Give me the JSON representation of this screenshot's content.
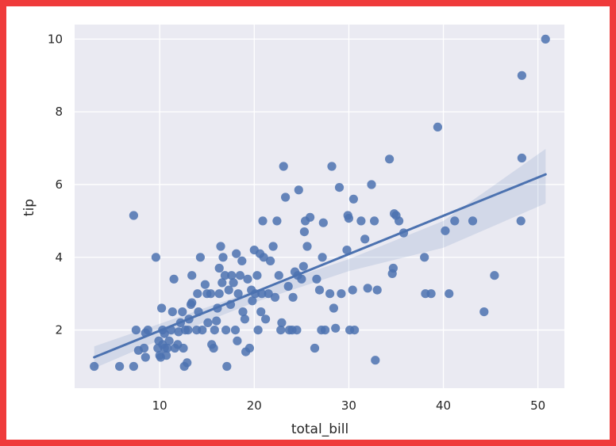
{
  "chart_data": {
    "type": "scatter",
    "title": "",
    "xlabel": "total_bill",
    "ylabel": "tip",
    "xlim": [
      1.0,
      52.8
    ],
    "ylim": [
      0.4,
      10.4
    ],
    "xticks": [
      10,
      20,
      30,
      40,
      50
    ],
    "yticks": [
      2,
      4,
      6,
      8,
      10
    ],
    "grid": true,
    "colors": {
      "background": "#eaeaf2",
      "grid": "#ffffff",
      "points": "#4c72b0",
      "line": "#4c72b0",
      "band": "#4c72b0"
    },
    "regression": {
      "x0": 3.07,
      "y0": 1.25,
      "x1": 50.81,
      "y1": 6.28
    },
    "ci_band": {
      "x": [
        3.07,
        10,
        20,
        30,
        40,
        50.81
      ],
      "upper": [
        1.55,
        2.17,
        3.08,
        3.95,
        5.0,
        6.98
      ],
      "lower": [
        0.95,
        1.72,
        2.76,
        3.62,
        4.26,
        5.48
      ]
    },
    "points": [
      [
        3.07,
        1.0
      ],
      [
        5.75,
        1.0
      ],
      [
        7.25,
        1.0
      ],
      [
        7.25,
        5.15
      ],
      [
        7.5,
        2.0
      ],
      [
        7.75,
        1.44
      ],
      [
        8.35,
        1.5
      ],
      [
        8.5,
        1.25
      ],
      [
        8.75,
        2.0
      ],
      [
        8.5,
        1.92
      ],
      [
        9.6,
        4.0
      ],
      [
        9.8,
        1.5
      ],
      [
        9.9,
        1.7
      ],
      [
        10.0,
        1.3
      ],
      [
        10.1,
        1.25
      ],
      [
        10.2,
        2.6
      ],
      [
        10.3,
        1.6
      ],
      [
        10.5,
        1.5
      ],
      [
        10.5,
        1.9
      ],
      [
        10.3,
        2.0
      ],
      [
        10.7,
        1.3
      ],
      [
        10.8,
        1.5
      ],
      [
        11.0,
        1.7
      ],
      [
        11.2,
        2.0
      ],
      [
        11.35,
        2.5
      ],
      [
        11.5,
        3.4
      ],
      [
        11.6,
        1.5
      ],
      [
        11.9,
        1.6
      ],
      [
        12.0,
        1.95
      ],
      [
        12.2,
        2.2
      ],
      [
        12.4,
        2.5
      ],
      [
        12.5,
        1.5
      ],
      [
        12.6,
        1.0
      ],
      [
        12.7,
        2.0
      ],
      [
        12.9,
        1.1
      ],
      [
        13.0,
        2.0
      ],
      [
        13.1,
        2.3
      ],
      [
        13.3,
        2.7
      ],
      [
        13.4,
        2.75
      ],
      [
        13.4,
        3.5
      ],
      [
        13.9,
        2.0
      ],
      [
        14.0,
        3.0
      ],
      [
        14.1,
        2.5
      ],
      [
        14.3,
        4.0
      ],
      [
        14.5,
        2.0
      ],
      [
        14.8,
        3.25
      ],
      [
        15.0,
        3.0
      ],
      [
        15.1,
        2.2
      ],
      [
        15.4,
        3.0
      ],
      [
        15.5,
        1.6
      ],
      [
        15.7,
        1.5
      ],
      [
        15.8,
        2.0
      ],
      [
        16.0,
        2.25
      ],
      [
        16.1,
        2.6
      ],
      [
        16.3,
        3.0
      ],
      [
        16.3,
        3.7
      ],
      [
        16.45,
        4.3
      ],
      [
        16.6,
        3.3
      ],
      [
        16.7,
        4.0
      ],
      [
        16.9,
        3.5
      ],
      [
        17.0,
        2.0
      ],
      [
        17.1,
        1.0
      ],
      [
        17.3,
        3.1
      ],
      [
        17.5,
        2.7
      ],
      [
        17.6,
        3.5
      ],
      [
        17.8,
        3.3
      ],
      [
        18.0,
        2.0
      ],
      [
        18.1,
        4.1
      ],
      [
        18.2,
        1.7
      ],
      [
        18.3,
        3.0
      ],
      [
        18.5,
        3.5
      ],
      [
        18.7,
        3.9
      ],
      [
        18.8,
        2.5
      ],
      [
        19.0,
        2.3
      ],
      [
        19.1,
        1.4
      ],
      [
        19.3,
        3.4
      ],
      [
        19.5,
        1.5
      ],
      [
        19.7,
        3.1
      ],
      [
        19.8,
        2.8
      ],
      [
        20.0,
        4.2
      ],
      [
        20.1,
        3.0
      ],
      [
        20.3,
        3.5
      ],
      [
        20.4,
        2.0
      ],
      [
        20.6,
        4.1
      ],
      [
        20.7,
        2.5
      ],
      [
        20.8,
        3.0
      ],
      [
        20.9,
        5.0
      ],
      [
        21.0,
        4.0
      ],
      [
        21.2,
        2.3
      ],
      [
        21.5,
        3.0
      ],
      [
        21.7,
        3.9
      ],
      [
        22.0,
        4.3
      ],
      [
        22.2,
        2.9
      ],
      [
        22.4,
        5.0
      ],
      [
        22.6,
        3.5
      ],
      [
        22.8,
        2.0
      ],
      [
        22.9,
        2.2
      ],
      [
        23.1,
        6.5
      ],
      [
        23.3,
        5.65
      ],
      [
        23.6,
        3.2
      ],
      [
        23.7,
        2.0
      ],
      [
        24.0,
        2.0
      ],
      [
        24.1,
        2.9
      ],
      [
        24.3,
        3.6
      ],
      [
        24.5,
        2.0
      ],
      [
        24.6,
        3.5
      ],
      [
        24.7,
        5.85
      ],
      [
        25.0,
        3.4
      ],
      [
        25.2,
        3.75
      ],
      [
        25.3,
        4.7
      ],
      [
        25.4,
        5.0
      ],
      [
        25.6,
        4.3
      ],
      [
        25.9,
        5.1
      ],
      [
        26.4,
        1.5
      ],
      [
        26.6,
        3.4
      ],
      [
        26.9,
        3.1
      ],
      [
        27.1,
        2.0
      ],
      [
        27.2,
        4.0
      ],
      [
        27.3,
        4.95
      ],
      [
        27.5,
        2.0
      ],
      [
        28.0,
        3.0
      ],
      [
        28.2,
        6.5
      ],
      [
        28.4,
        2.6
      ],
      [
        28.6,
        2.05
      ],
      [
        29.0,
        5.92
      ],
      [
        29.2,
        3.0
      ],
      [
        29.8,
        4.2
      ],
      [
        29.9,
        5.15
      ],
      [
        30.0,
        5.07
      ],
      [
        30.1,
        2.0
      ],
      [
        30.4,
        3.1
      ],
      [
        30.5,
        5.6
      ],
      [
        30.6,
        2.0
      ],
      [
        31.3,
        5.0
      ],
      [
        31.7,
        4.5
      ],
      [
        32.0,
        3.15
      ],
      [
        32.4,
        6.0
      ],
      [
        32.7,
        5.0
      ],
      [
        32.8,
        1.17
      ],
      [
        33.0,
        3.1
      ],
      [
        34.3,
        6.7
      ],
      [
        34.6,
        3.55
      ],
      [
        34.7,
        3.7
      ],
      [
        34.8,
        5.2
      ],
      [
        35.0,
        5.15
      ],
      [
        35.3,
        5.0
      ],
      [
        35.8,
        4.67
      ],
      [
        38.0,
        4.0
      ],
      [
        38.1,
        3.0
      ],
      [
        38.7,
        3.0
      ],
      [
        39.4,
        7.58
      ],
      [
        40.2,
        4.73
      ],
      [
        40.6,
        3.0
      ],
      [
        41.2,
        5.0
      ],
      [
        43.1,
        5.0
      ],
      [
        44.3,
        2.5
      ],
      [
        45.4,
        3.5
      ],
      [
        48.2,
        5.0
      ],
      [
        48.3,
        6.73
      ],
      [
        48.3,
        9.0
      ],
      [
        50.8,
        10.0
      ]
    ]
  }
}
